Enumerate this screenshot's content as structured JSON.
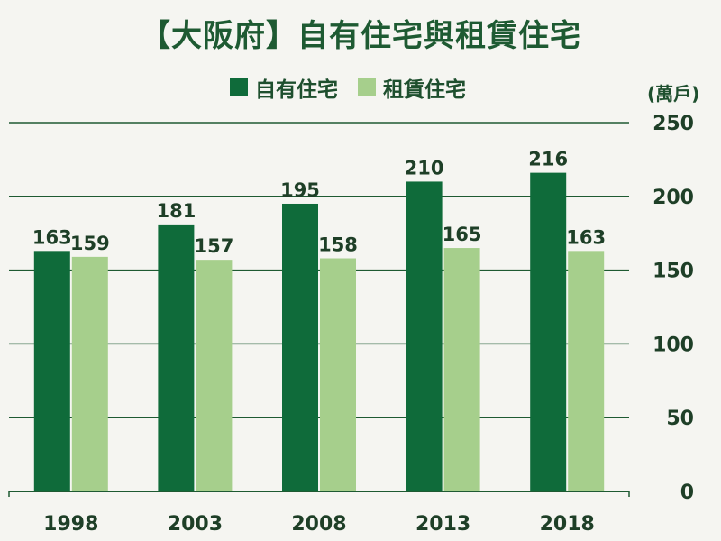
{
  "title": "【大阪府】自有住宅與租賃住宅",
  "unit_label": "(萬戶)",
  "colors": {
    "owned": "#0f6b3a",
    "rented": "#a6cf8c",
    "grid": "#1e5a32"
  },
  "chart_data": {
    "type": "bar",
    "title": "【大阪府】自有住宅與租賃住宅",
    "categories": [
      "1998",
      "2003",
      "2008",
      "2013",
      "2018"
    ],
    "series": [
      {
        "name": "自有住宅",
        "values": [
          163,
          181,
          195,
          210,
          216
        ]
      },
      {
        "name": "租賃住宅",
        "values": [
          159,
          157,
          158,
          165,
          163
        ]
      }
    ],
    "ylabel": "(萬戶)",
    "ylim": [
      0,
      250
    ],
    "yticks": [
      0,
      50,
      100,
      150,
      200,
      250
    ],
    "grid": true,
    "legend_position": "top"
  }
}
